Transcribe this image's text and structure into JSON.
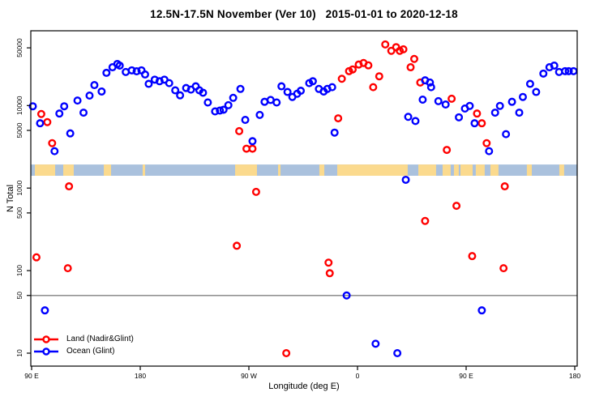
{
  "title": "12.5N-17.5N November (Ver 10)   2015-01-01 to 2020-12-18",
  "axes": {
    "x_label": "Longitude (deg E)",
    "y_label": "N Total",
    "x_ticks": [
      {
        "value": 90,
        "label": "90 E"
      },
      {
        "value": 180,
        "label": "180"
      },
      {
        "value": 270,
        "label": "90 W"
      },
      {
        "value": 360,
        "label": "0"
      },
      {
        "value": 450,
        "label": "90 E"
      },
      {
        "value": 540,
        "label": "180"
      }
    ],
    "y_ticks": [
      {
        "value": 10,
        "label": "10"
      },
      {
        "value": 50,
        "label": "50"
      },
      {
        "value": 100,
        "label": "100"
      },
      {
        "value": 500,
        "label": "500"
      },
      {
        "value": 1000,
        "label": "1000"
      },
      {
        "value": 5000,
        "label": "5000"
      },
      {
        "value": 10000,
        "label": "10000"
      },
      {
        "value": 50000,
        "label": "50000"
      }
    ]
  },
  "legend": {
    "items": [
      {
        "label": "Land (Nadir&Glint)",
        "color": "#ff0000"
      },
      {
        "label": "Ocean (Glint)",
        "color": "#0000ff"
      }
    ]
  },
  "chart_data": {
    "type": "scatter",
    "title": "12.5N-17.5N November (Ver 10)   2015-01-01 to 2020-12-18",
    "xlabel": "Longitude (deg E)",
    "ylabel": "N Total",
    "x_axis": {
      "scale": "linear",
      "range_deg_east_unwrapped": [
        90,
        540
      ]
    },
    "y_axis": {
      "scale": "log10",
      "range": [
        10,
        56000
      ]
    },
    "grid": false,
    "legend_position": "bottom-left",
    "reference_line_y": 50,
    "map_strip": {
      "n_extent": [
        1410,
        1930
      ],
      "ocean_color": "#aac1dd",
      "land_color": "#fbda8e",
      "land_patches_deg": [
        [
          92.7,
          109.5
        ],
        [
          116.2,
          124.9
        ],
        [
          149.8,
          155.8
        ],
        [
          182.0,
          184.0
        ],
        [
          258.6,
          276.7
        ],
        [
          294.2,
          296.2
        ],
        [
          328.4,
          332.5
        ],
        [
          343.2,
          401.6
        ],
        [
          410.4,
          425.1
        ],
        [
          430.5,
          437.2
        ],
        [
          439.9,
          443.9
        ],
        [
          445.3,
          455.4
        ],
        [
          458.0,
          465.4
        ],
        [
          470.1,
          476.8
        ],
        [
          500.3,
          504.4
        ],
        [
          527.2,
          531.2
        ]
      ]
    },
    "series": [
      {
        "name": "Land (Nadir&Glint)",
        "color": "#ff0000",
        "points": [
          [
            98,
            7900
          ],
          [
            103,
            6300
          ],
          [
            107,
            3500
          ],
          [
            262,
            4900
          ],
          [
            268,
            3000
          ],
          [
            273,
            3000
          ],
          [
            344,
            7000
          ],
          [
            347,
            21100
          ],
          [
            353,
            26100
          ],
          [
            356,
            27400
          ],
          [
            361,
            31400
          ],
          [
            365,
            32800
          ],
          [
            369,
            30700
          ],
          [
            373,
            16700
          ],
          [
            378,
            22600
          ],
          [
            383,
            55000
          ],
          [
            388,
            46000
          ],
          [
            392,
            51000
          ],
          [
            395,
            46000
          ],
          [
            398,
            48000
          ],
          [
            404,
            29100
          ],
          [
            407,
            36700
          ],
          [
            412,
            19000
          ],
          [
            434,
            2900
          ],
          [
            438,
            12100
          ],
          [
            459,
            8000
          ],
          [
            463,
            6100
          ],
          [
            467,
            3500
          ],
          [
            121,
            1050
          ],
          [
            276,
            900
          ],
          [
            482,
            1050
          ],
          [
            442,
            610
          ],
          [
            416,
            400
          ],
          [
            260,
            200
          ],
          [
            94,
            145
          ],
          [
            120,
            107
          ],
          [
            455,
            150
          ],
          [
            336,
            125
          ],
          [
            337,
            93
          ],
          [
            481,
            107
          ],
          [
            301,
            10
          ]
        ]
      },
      {
        "name": "Ocean (Glint)",
        "color": "#0000ff",
        "points": [
          [
            91,
            9800
          ],
          [
            97,
            6100
          ],
          [
            109,
            2800
          ],
          [
            113,
            8000
          ],
          [
            117,
            9800
          ],
          [
            122,
            4600
          ],
          [
            128,
            11500
          ],
          [
            133,
            8200
          ],
          [
            138,
            13200
          ],
          [
            142,
            17700
          ],
          [
            148,
            14800
          ],
          [
            152,
            24900
          ],
          [
            157,
            29100
          ],
          [
            161,
            31900
          ],
          [
            163,
            30500
          ],
          [
            168,
            25500
          ],
          [
            173,
            26700
          ],
          [
            177,
            26000
          ],
          [
            181,
            26700
          ],
          [
            184,
            23800
          ],
          [
            187,
            18300
          ],
          [
            192,
            20600
          ],
          [
            196,
            19700
          ],
          [
            200,
            20600
          ],
          [
            204,
            18700
          ],
          [
            209,
            15300
          ],
          [
            213,
            13300
          ],
          [
            218,
            16300
          ],
          [
            222,
            15600
          ],
          [
            226,
            17100
          ],
          [
            229,
            15300
          ],
          [
            232,
            14300
          ],
          [
            236,
            10900
          ],
          [
            242,
            8500
          ],
          [
            246,
            8700
          ],
          [
            249,
            8900
          ],
          [
            253,
            10100
          ],
          [
            257,
            12400
          ],
          [
            263,
            15900
          ],
          [
            267,
            6700
          ],
          [
            273,
            3700
          ],
          [
            279,
            7700
          ],
          [
            283,
            11100
          ],
          [
            288,
            11700
          ],
          [
            293,
            10900
          ],
          [
            297,
            17100
          ],
          [
            302,
            14600
          ],
          [
            306,
            12700
          ],
          [
            310,
            13900
          ],
          [
            313,
            15100
          ],
          [
            320,
            18700
          ],
          [
            323,
            19700
          ],
          [
            328,
            15900
          ],
          [
            332,
            14800
          ],
          [
            335,
            15900
          ],
          [
            339,
            16700
          ],
          [
            341,
            4700
          ],
          [
            400,
            1260
          ],
          [
            402,
            7300
          ],
          [
            408,
            6500
          ],
          [
            414,
            11800
          ],
          [
            416,
            20200
          ],
          [
            420,
            19000
          ],
          [
            421,
            16700
          ],
          [
            427,
            11300
          ],
          [
            433,
            10300
          ],
          [
            444,
            7200
          ],
          [
            449,
            9200
          ],
          [
            453,
            9900
          ],
          [
            457,
            6100
          ],
          [
            469,
            2800
          ],
          [
            474,
            8200
          ],
          [
            478,
            9900
          ],
          [
            483,
            4500
          ],
          [
            488,
            11100
          ],
          [
            494,
            8200
          ],
          [
            497,
            12700
          ],
          [
            503,
            18300
          ],
          [
            508,
            14600
          ],
          [
            514,
            24400
          ],
          [
            519,
            29100
          ],
          [
            523,
            30500
          ],
          [
            527,
            25500
          ],
          [
            532,
            26100
          ],
          [
            535,
            26100
          ],
          [
            539,
            26100
          ],
          [
            101,
            33
          ],
          [
            351,
            50
          ],
          [
            463,
            33
          ],
          [
            375,
            13
          ],
          [
            393,
            10
          ]
        ]
      }
    ]
  },
  "colors": {
    "background": "#ffffff",
    "box": "#000000",
    "reference_line": "#808080",
    "land_series": "#ff0000",
    "ocean_series": "#0000ff"
  }
}
